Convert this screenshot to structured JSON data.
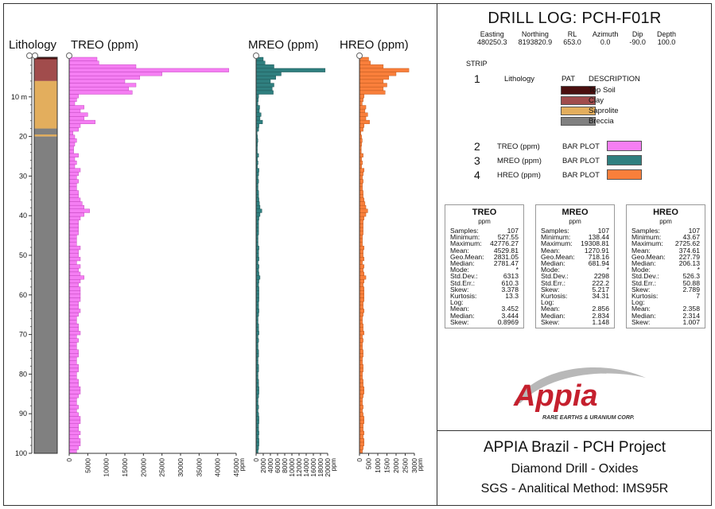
{
  "left": {
    "headers": {
      "lithology": "Lithology",
      "treo": "TREO (ppm)",
      "mreo": "MREO (ppm)",
      "hreo": "HREO (ppm)"
    },
    "depth_ticks": [
      "10 m",
      "20",
      "30",
      "40",
      "50",
      "60",
      "70",
      "80",
      "90",
      "100"
    ]
  },
  "header": {
    "title": "DRILL LOG: PCH-F01R",
    "labels": [
      "Easting",
      "Northing",
      "RL",
      "Azimuth",
      "Dip",
      "Depth"
    ],
    "values": [
      "480250.3",
      "8193820.9",
      "653.0",
      "0.0",
      "-90.0",
      "100.0"
    ]
  },
  "legend": {
    "strip_label": "STRIP",
    "s1_num": "1",
    "s1_name": "Lithology",
    "pat": "PAT",
    "desc": "DESCRIPTION",
    "items": [
      {
        "label": "Top Soil",
        "color": "#4a0f0f"
      },
      {
        "label": "Clay",
        "color": "#a14c4c"
      },
      {
        "label": "Saprolite",
        "color": "#e3ae5d"
      },
      {
        "label": "Breccia",
        "color": "#808080"
      }
    ],
    "bars": [
      {
        "num": "2",
        "name": "TREO (ppm)",
        "type": "BAR PLOT",
        "color": "#f57ef3"
      },
      {
        "num": "3",
        "name": "MREO (ppm)",
        "type": "BAR PLOT",
        "color": "#2f7f7f"
      },
      {
        "num": "4",
        "name": "HREO (ppm)",
        "type": "BAR PLOT",
        "color": "#f97f3b"
      }
    ]
  },
  "stats": [
    {
      "title": "TREO",
      "unit": "ppm",
      "rows": [
        [
          "Samples:",
          "107"
        ],
        [
          "Minimum:",
          "527.55"
        ],
        [
          "Maximum:",
          "42776.27"
        ],
        [
          "Mean:",
          "4529.81"
        ],
        [
          "Geo.Mean:",
          "2831.05"
        ],
        [
          "Median:",
          "2781.47"
        ],
        [
          "Mode:",
          "*"
        ],
        [
          "Std.Dev.:",
          "6313"
        ],
        [
          "Std.Err.:",
          "610.3"
        ],
        [
          "Skew:",
          "3.378"
        ],
        [
          "Kurtosis:",
          "13.3"
        ],
        [
          "Log:",
          ""
        ],
        [
          "Mean:",
          "3.452"
        ],
        [
          "Median:",
          "3.444"
        ],
        [
          "Skew:",
          "0.8969"
        ]
      ]
    },
    {
      "title": "MREO",
      "unit": "ppm",
      "rows": [
        [
          "Samples:",
          "107"
        ],
        [
          "Minimum:",
          "138.44"
        ],
        [
          "Maximum:",
          "19308.81"
        ],
        [
          "Mean:",
          "1270.91"
        ],
        [
          "Geo.Mean:",
          "718.16"
        ],
        [
          "Median:",
          "681.94"
        ],
        [
          "Mode:",
          "*"
        ],
        [
          "Std.Dev.:",
          "2298"
        ],
        [
          "Std.Err.:",
          "222.2"
        ],
        [
          "Skew:",
          "5.217"
        ],
        [
          "Kurtosis:",
          "34.31"
        ],
        [
          "Log:",
          ""
        ],
        [
          "Mean:",
          "2.856"
        ],
        [
          "Median:",
          "2.834"
        ],
        [
          "Skew:",
          "1.148"
        ]
      ]
    },
    {
      "title": "HREO",
      "unit": "ppm",
      "rows": [
        [
          "Samples:",
          "107"
        ],
        [
          "Minimum:",
          "43.67"
        ],
        [
          "Maximum:",
          "2725.62"
        ],
        [
          "Mean:",
          "374.61"
        ],
        [
          "Geo.Mean:",
          "227.79"
        ],
        [
          "Median:",
          "206.13"
        ],
        [
          "Mode:",
          "*"
        ],
        [
          "Std.Dev.:",
          "526.3"
        ],
        [
          "Std.Err.:",
          "50.88"
        ],
        [
          "Skew:",
          "2.789"
        ],
        [
          "Kurtosis:",
          "7"
        ],
        [
          "Log:",
          ""
        ],
        [
          "Mean:",
          "2.358"
        ],
        [
          "Median:",
          "2.314"
        ],
        [
          "Skew:",
          "1.007"
        ]
      ]
    }
  ],
  "logo": {
    "name": "Appia",
    "tagline": "RARE EARTHS & URANIUM CORP."
  },
  "footer": {
    "line1": "APPIA Brazil - PCH Project",
    "line2": "Diamond Drill - Oxides",
    "line3": "SGS - Analitical Method: IMS95R"
  },
  "chart_data": {
    "type": "bar",
    "orientation": "horizontal",
    "y_axis": "depth (m)",
    "ylim": [
      0,
      100
    ],
    "lithology_intervals": [
      {
        "from": 0,
        "to": 0.5,
        "unit": "Top Soil"
      },
      {
        "from": 0.5,
        "to": 6,
        "unit": "Clay"
      },
      {
        "from": 6,
        "to": 20,
        "unit": "Saprolite"
      },
      {
        "from": 20,
        "to": 100,
        "unit": "Breccia"
      }
    ],
    "series": [
      {
        "name": "TREO (ppm)",
        "xlim": [
          0,
          45000
        ],
        "ticks": [
          0,
          5000,
          10000,
          15000,
          20000,
          25000,
          30000,
          35000,
          40000,
          45000
        ],
        "xunit": "ppm",
        "values": [
          7500,
          8000,
          18000,
          43000,
          25000,
          19000,
          15000,
          18000,
          16000,
          17000,
          2500,
          2000,
          1500,
          4000,
          3000,
          5000,
          4000,
          7000,
          3000,
          2500,
          1000,
          1500,
          2000,
          1500,
          1200,
          1200,
          2500,
          1500,
          2000,
          1500,
          3000,
          2500,
          2000,
          2500,
          2000,
          2000,
          2500,
          2500,
          3000,
          3500,
          4000,
          5500,
          4000,
          3000,
          2500,
          2500,
          2500,
          2500,
          2000,
          2000,
          2000,
          3000,
          2500,
          2500,
          3000,
          2000,
          3000,
          2500,
          3000,
          4000,
          3000,
          2500,
          3000,
          3000,
          3000,
          3000,
          2500,
          2500,
          3000,
          2500,
          2000,
          2000,
          2500,
          2500,
          3000,
          2000,
          2500,
          2000,
          2000,
          2500,
          2500,
          2000,
          2000,
          2500,
          2500,
          2000,
          2000,
          2500,
          2500,
          3000,
          3000,
          2500,
          2000,
          2000,
          2500,
          2000,
          2500,
          3000,
          3000,
          2500,
          2500,
          3000,
          2500,
          3000,
          3000,
          2500,
          2000
        ]
      },
      {
        "name": "MREO (ppm)",
        "xlim": [
          0,
          20000
        ],
        "ticks": [
          0,
          2000,
          4000,
          6000,
          8000,
          10000,
          12000,
          14000,
          16000,
          18000,
          20000
        ],
        "xunit": "ppm",
        "values": [
          2000,
          2500,
          5000,
          19300,
          7000,
          5500,
          4000,
          5000,
          4500,
          4800,
          700,
          600,
          500,
          1000,
          900,
          1400,
          1100,
          1800,
          800,
          700,
          300,
          400,
          500,
          400,
          350,
          350,
          700,
          400,
          550,
          400,
          800,
          700,
          550,
          700,
          550,
          550,
          700,
          700,
          800,
          950,
          1100,
          1600,
          1100,
          800,
          700,
          700,
          700,
          700,
          550,
          550,
          550,
          800,
          700,
          700,
          800,
          550,
          800,
          700,
          800,
          1100,
          800,
          700,
          800,
          800,
          800,
          800,
          700,
          700,
          800,
          700,
          550,
          550,
          700,
          700,
          800,
          550,
          700,
          550,
          550,
          700,
          700,
          550,
          550,
          700,
          700,
          550,
          550,
          700,
          700,
          800,
          800,
          700,
          550,
          550,
          700,
          550,
          700,
          800,
          800,
          700,
          700,
          800,
          700,
          800,
          800,
          700,
          550
        ]
      },
      {
        "name": "HREO (ppm)",
        "xlim": [
          0,
          3000
        ],
        "ticks": [
          0,
          500,
          1000,
          1500,
          2000,
          2500,
          3000
        ],
        "xunit": "ppm",
        "values": [
          500,
          600,
          1300,
          2700,
          2000,
          1600,
          1300,
          1500,
          1300,
          1400,
          250,
          200,
          150,
          350,
          300,
          450,
          350,
          550,
          250,
          200,
          80,
          120,
          150,
          120,
          100,
          100,
          200,
          120,
          160,
          120,
          250,
          200,
          160,
          200,
          160,
          160,
          200,
          200,
          250,
          300,
          350,
          450,
          350,
          250,
          200,
          200,
          200,
          200,
          160,
          160,
          160,
          250,
          200,
          200,
          250,
          160,
          250,
          200,
          250,
          350,
          250,
          200,
          250,
          250,
          250,
          250,
          200,
          200,
          250,
          200,
          160,
          160,
          200,
          200,
          250,
          160,
          200,
          160,
          160,
          200,
          200,
          160,
          160,
          200,
          200,
          160,
          160,
          200,
          200,
          250,
          250,
          200,
          160,
          160,
          200,
          160,
          200,
          250,
          250,
          200,
          200,
          250,
          200,
          250,
          250,
          200,
          160
        ]
      }
    ]
  }
}
